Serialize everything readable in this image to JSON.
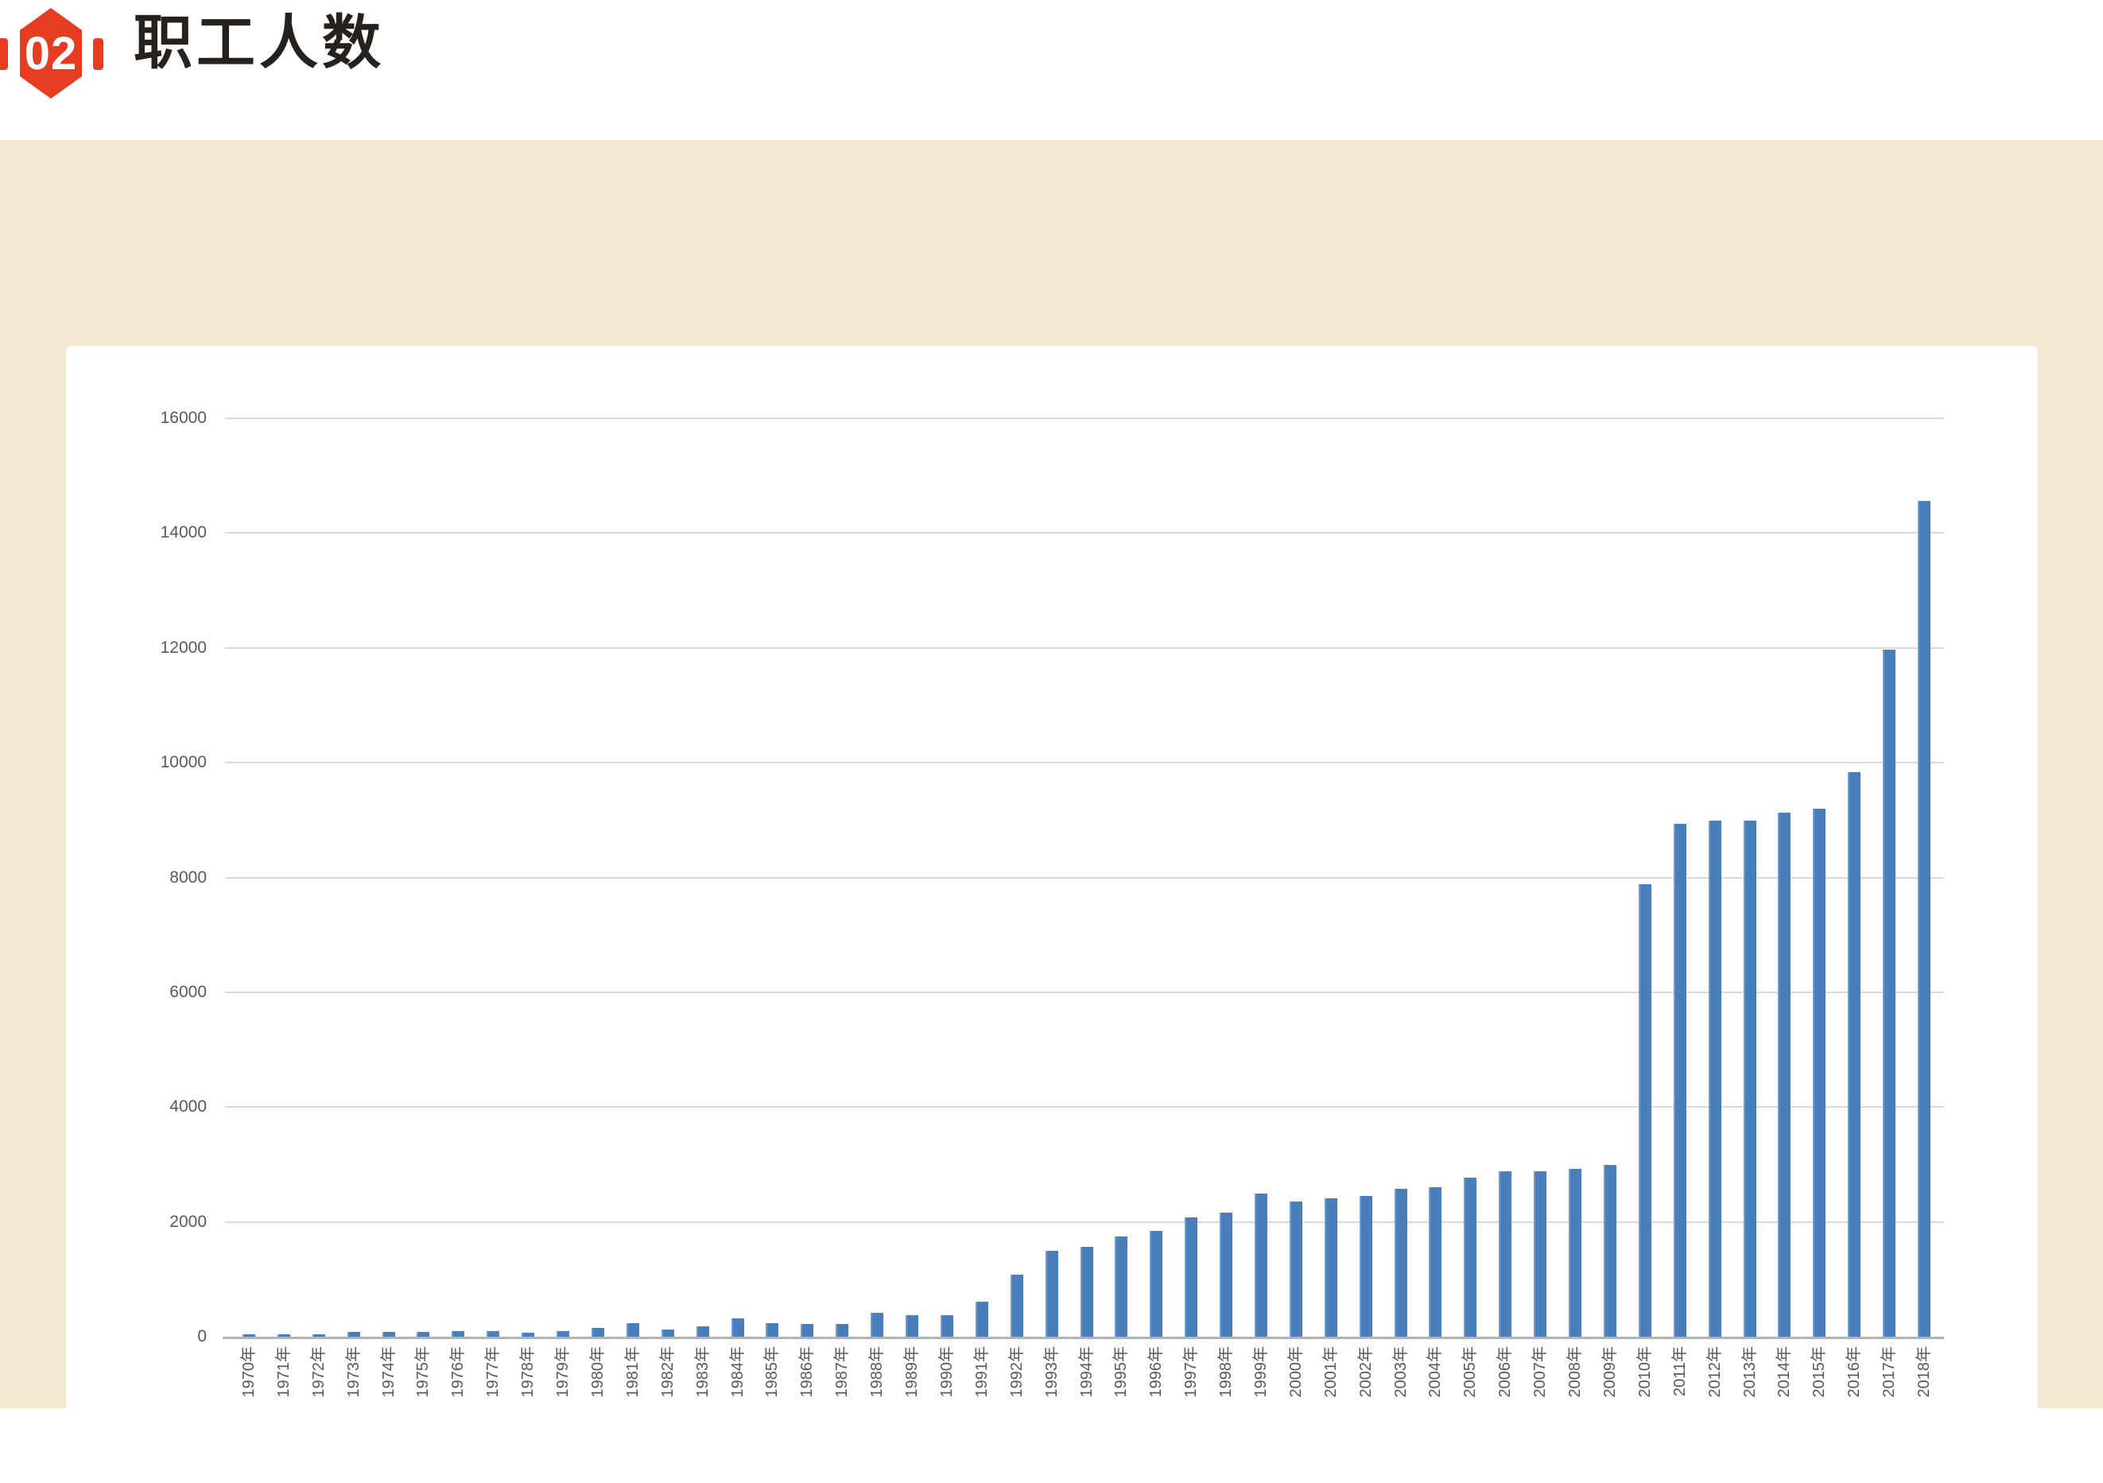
{
  "page": {
    "background": "#ffffff",
    "panel_bg": "#f5e8d0",
    "card_bg": "#ffffff"
  },
  "header": {
    "badge_number": "02",
    "badge_color": "#e63c22",
    "title": "职工人数",
    "title_color": "#26211d"
  },
  "chart_data": {
    "type": "bar",
    "title": "职工人数",
    "xlabel": "",
    "ylabel": "",
    "ylim": [
      0,
      16000
    ],
    "ytick_interval": 2000,
    "ytick_labels": [
      "0",
      "2000",
      "4000",
      "6000",
      "8000",
      "10000",
      "12000",
      "14000",
      "16000"
    ],
    "grid": true,
    "legend": "none",
    "bar_color": "#4a7ebb",
    "bar_edge_highlight": "#6f9ccf",
    "gridline_color": "#d9d9d9",
    "axis_line_color": "#b3b3b3",
    "tick_label_color": "#595959",
    "categories": [
      "1970年",
      "1971年",
      "1972年",
      "1973年",
      "1974年",
      "1975年",
      "1976年",
      "1977年",
      "1978年",
      "1979年",
      "1980年",
      "1981年",
      "1982年",
      "1983年",
      "1984年",
      "1985年",
      "1986年",
      "1987年",
      "1988年",
      "1989年",
      "1990年",
      "1991年",
      "1992年",
      "1993年",
      "1994年",
      "1995年",
      "1996年",
      "1997年",
      "1998年",
      "1999年",
      "2000年",
      "2001年",
      "2002年",
      "2003年",
      "2004年",
      "2005年",
      "2006年",
      "2007年",
      "2008年",
      "2009年",
      "2010年",
      "2011年",
      "2012年",
      "2013年",
      "2014年",
      "2015年",
      "2016年",
      "2017年",
      "2018年"
    ],
    "values": [
      50,
      60,
      60,
      100,
      100,
      100,
      110,
      110,
      90,
      110,
      160,
      250,
      140,
      190,
      330,
      250,
      240,
      230,
      430,
      390,
      390,
      630,
      1100,
      1510,
      1580,
      1760,
      1850,
      2090,
      2180,
      2510,
      2370,
      2420,
      2460,
      2590,
      2620,
      2790,
      2890,
      2890,
      2930,
      3000,
      7900,
      8950,
      9010,
      9010,
      9140,
      9210,
      9850,
      11980,
      14580
    ]
  }
}
